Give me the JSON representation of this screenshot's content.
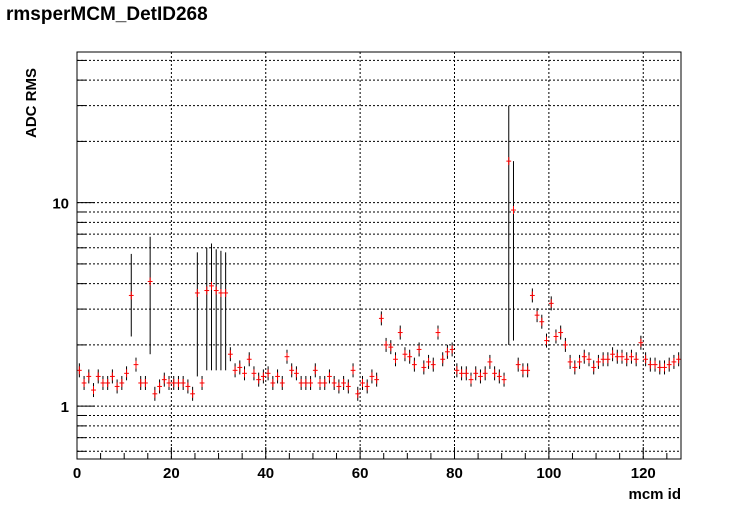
{
  "chart_data": {
    "type": "scatter",
    "title": "rmsperMCM_DetID268",
    "xlabel": "mcm id",
    "ylabel": "ADC RMS",
    "xlim": [
      0,
      128
    ],
    "ylim": [
      0.55,
      55
    ],
    "yscale": "log",
    "grid": true,
    "x_ticks": [
      0,
      20,
      40,
      60,
      80,
      100,
      120
    ],
    "y_tick_labels": [
      1,
      10
    ],
    "marker_color": "#ff0000",
    "error_color": "#000000",
    "points": [
      {
        "x": 0,
        "y": 1.5
      },
      {
        "x": 1,
        "y": 1.3
      },
      {
        "x": 2,
        "y": 1.4
      },
      {
        "x": 3,
        "y": 1.2
      },
      {
        "x": 4,
        "y": 1.4
      },
      {
        "x": 5,
        "y": 1.3
      },
      {
        "x": 6,
        "y": 1.3
      },
      {
        "x": 7,
        "y": 1.4
      },
      {
        "x": 8,
        "y": 1.25
      },
      {
        "x": 9,
        "y": 1.3
      },
      {
        "x": 10,
        "y": 1.45
      },
      {
        "x": 11,
        "y": 3.5,
        "err": [
          2.2,
          5.6
        ]
      },
      {
        "x": 12,
        "y": 1.6
      },
      {
        "x": 13,
        "y": 1.3
      },
      {
        "x": 14,
        "y": 1.3
      },
      {
        "x": 15,
        "y": 4.1,
        "err": [
          1.8,
          6.8
        ]
      },
      {
        "x": 16,
        "y": 1.15
      },
      {
        "x": 17,
        "y": 1.25
      },
      {
        "x": 18,
        "y": 1.35
      },
      {
        "x": 19,
        "y": 1.3
      },
      {
        "x": 20,
        "y": 1.3
      },
      {
        "x": 21,
        "y": 1.3
      },
      {
        "x": 22,
        "y": 1.3
      },
      {
        "x": 23,
        "y": 1.25
      },
      {
        "x": 24,
        "y": 1.15
      },
      {
        "x": 25,
        "y": 3.6,
        "err": [
          1.4,
          5.7
        ]
      },
      {
        "x": 26,
        "y": 1.3
      },
      {
        "x": 27,
        "y": 3.7,
        "err": [
          1.5,
          6.0
        ]
      },
      {
        "x": 28,
        "y": 3.9,
        "err": [
          1.5,
          6.3
        ]
      },
      {
        "x": 29,
        "y": 3.7,
        "err": [
          1.5,
          5.9
        ]
      },
      {
        "x": 30,
        "y": 3.6,
        "err": [
          1.5,
          5.8
        ]
      },
      {
        "x": 31,
        "y": 3.6,
        "err": [
          1.5,
          5.7
        ]
      },
      {
        "x": 32,
        "y": 1.8
      },
      {
        "x": 33,
        "y": 1.5
      },
      {
        "x": 34,
        "y": 1.55
      },
      {
        "x": 35,
        "y": 1.45
      },
      {
        "x": 36,
        "y": 1.7
      },
      {
        "x": 37,
        "y": 1.45
      },
      {
        "x": 38,
        "y": 1.35
      },
      {
        "x": 39,
        "y": 1.4
      },
      {
        "x": 40,
        "y": 1.45
      },
      {
        "x": 41,
        "y": 1.3
      },
      {
        "x": 42,
        "y": 1.4
      },
      {
        "x": 43,
        "y": 1.3
      },
      {
        "x": 44,
        "y": 1.75
      },
      {
        "x": 45,
        "y": 1.5
      },
      {
        "x": 46,
        "y": 1.45
      },
      {
        "x": 47,
        "y": 1.3
      },
      {
        "x": 48,
        "y": 1.3
      },
      {
        "x": 49,
        "y": 1.3
      },
      {
        "x": 50,
        "y": 1.5
      },
      {
        "x": 51,
        "y": 1.3
      },
      {
        "x": 52,
        "y": 1.3
      },
      {
        "x": 53,
        "y": 1.4
      },
      {
        "x": 54,
        "y": 1.3
      },
      {
        "x": 55,
        "y": 1.25
      },
      {
        "x": 56,
        "y": 1.3
      },
      {
        "x": 57,
        "y": 1.25
      },
      {
        "x": 58,
        "y": 1.5
      },
      {
        "x": 59,
        "y": 1.15
      },
      {
        "x": 60,
        "y": 1.3
      },
      {
        "x": 61,
        "y": 1.25
      },
      {
        "x": 62,
        "y": 1.4
      },
      {
        "x": 63,
        "y": 1.35
      },
      {
        "x": 64,
        "y": 2.7
      },
      {
        "x": 65,
        "y": 2.0
      },
      {
        "x": 66,
        "y": 1.95
      },
      {
        "x": 67,
        "y": 1.7
      },
      {
        "x": 68,
        "y": 2.3
      },
      {
        "x": 69,
        "y": 1.8
      },
      {
        "x": 70,
        "y": 1.75
      },
      {
        "x": 71,
        "y": 1.6
      },
      {
        "x": 72,
        "y": 1.9
      },
      {
        "x": 73,
        "y": 1.55
      },
      {
        "x": 74,
        "y": 1.65
      },
      {
        "x": 75,
        "y": 1.6
      },
      {
        "x": 76,
        "y": 2.3
      },
      {
        "x": 77,
        "y": 1.7
      },
      {
        "x": 78,
        "y": 1.85
      },
      {
        "x": 79,
        "y": 1.9
      },
      {
        "x": 80,
        "y": 1.5
      },
      {
        "x": 81,
        "y": 1.45
      },
      {
        "x": 82,
        "y": 1.45
      },
      {
        "x": 83,
        "y": 1.35
      },
      {
        "x": 84,
        "y": 1.45
      },
      {
        "x": 85,
        "y": 1.4
      },
      {
        "x": 86,
        "y": 1.45
      },
      {
        "x": 87,
        "y": 1.65
      },
      {
        "x": 88,
        "y": 1.45
      },
      {
        "x": 89,
        "y": 1.4
      },
      {
        "x": 90,
        "y": 1.35
      },
      {
        "x": 91,
        "y": 16,
        "err": [
          2.0,
          30
        ]
      },
      {
        "x": 92,
        "y": 9.2,
        "err": [
          2.1,
          16
        ]
      },
      {
        "x": 93,
        "y": 1.6
      },
      {
        "x": 94,
        "y": 1.5
      },
      {
        "x": 95,
        "y": 1.5
      },
      {
        "x": 96,
        "y": 3.5
      },
      {
        "x": 97,
        "y": 2.8
      },
      {
        "x": 98,
        "y": 2.6
      },
      {
        "x": 99,
        "y": 2.1
      },
      {
        "x": 100,
        "y": 3.2
      },
      {
        "x": 101,
        "y": 2.2
      },
      {
        "x": 102,
        "y": 2.3
      },
      {
        "x": 103,
        "y": 2.0
      },
      {
        "x": 104,
        "y": 1.65
      },
      {
        "x": 105,
        "y": 1.55
      },
      {
        "x": 106,
        "y": 1.65
      },
      {
        "x": 107,
        "y": 1.75
      },
      {
        "x": 108,
        "y": 1.7
      },
      {
        "x": 109,
        "y": 1.55
      },
      {
        "x": 110,
        "y": 1.65
      },
      {
        "x": 111,
        "y": 1.7
      },
      {
        "x": 112,
        "y": 1.7
      },
      {
        "x": 113,
        "y": 1.8
      },
      {
        "x": 114,
        "y": 1.75
      },
      {
        "x": 115,
        "y": 1.75
      },
      {
        "x": 116,
        "y": 1.7
      },
      {
        "x": 117,
        "y": 1.75
      },
      {
        "x": 118,
        "y": 1.7
      },
      {
        "x": 119,
        "y": 2.05
      },
      {
        "x": 120,
        "y": 1.7
      },
      {
        "x": 121,
        "y": 1.6
      },
      {
        "x": 122,
        "y": 1.6
      },
      {
        "x": 123,
        "y": 1.55
      },
      {
        "x": 124,
        "y": 1.55
      },
      {
        "x": 125,
        "y": 1.6
      },
      {
        "x": 126,
        "y": 1.65
      },
      {
        "x": 127,
        "y": 1.7
      }
    ]
  }
}
